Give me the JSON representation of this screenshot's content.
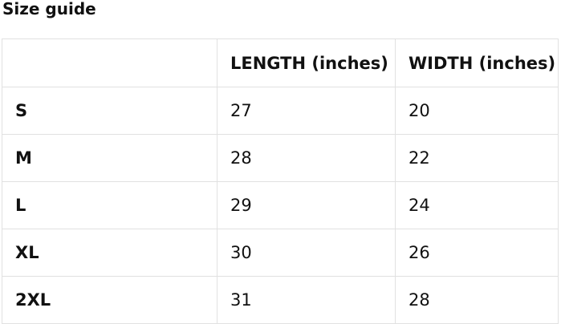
{
  "page": {
    "title": "Size guide"
  },
  "size_table": {
    "headers": {
      "size": "",
      "length": "LENGTH (inches)",
      "width": "WIDTH (inches)"
    },
    "rows": [
      {
        "size": "S",
        "length": "27",
        "width": "20"
      },
      {
        "size": "M",
        "length": "28",
        "width": "22"
      },
      {
        "size": "L",
        "length": "29",
        "width": "24"
      },
      {
        "size": "XL",
        "length": "30",
        "width": "26"
      },
      {
        "size": "2XL",
        "length": "31",
        "width": "28"
      }
    ]
  },
  "colors": {
    "background": "#ffffff",
    "border": "#e1e1e1",
    "text": "#111111"
  }
}
